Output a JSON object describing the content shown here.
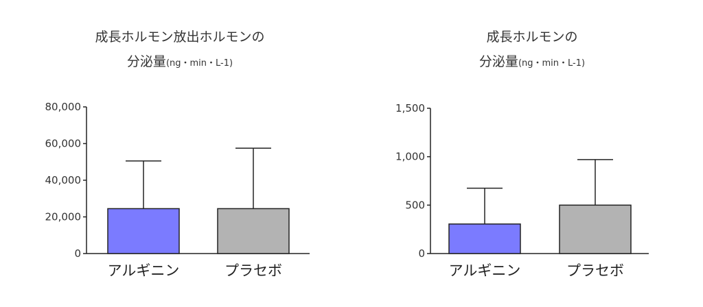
{
  "chart_data": [
    {
      "type": "bar",
      "title_line1": "成長ホルモン放出ホルモンの",
      "title_line2": "分泌量",
      "unit": "(ng・min・L-1)",
      "categories": [
        "アルギニン",
        "プラセボ"
      ],
      "values": [
        24500,
        24500
      ],
      "errors": [
        26000,
        33000
      ],
      "colors": [
        "#7b7bff",
        "#b3b3b3"
      ],
      "ylim": [
        0,
        80000
      ],
      "yticks": [
        0,
        20000,
        40000,
        60000,
        80000
      ],
      "ytick_labels": [
        "0",
        "20,000",
        "40,000",
        "60,000",
        "80,000"
      ]
    },
    {
      "type": "bar",
      "title_line1": "成長ホルモンの",
      "title_line2": "分泌量",
      "unit": "(ng・min・L-1)",
      "categories": [
        "アルギニン",
        "プラセボ"
      ],
      "values": [
        305,
        500
      ],
      "errors": [
        370,
        470
      ],
      "colors": [
        "#7b7bff",
        "#b3b3b3"
      ],
      "ylim": [
        0,
        1500
      ],
      "yticks": [
        0,
        500,
        1000,
        1500
      ],
      "ytick_labels": [
        "0",
        "500",
        "1,000",
        "1,500"
      ]
    }
  ]
}
